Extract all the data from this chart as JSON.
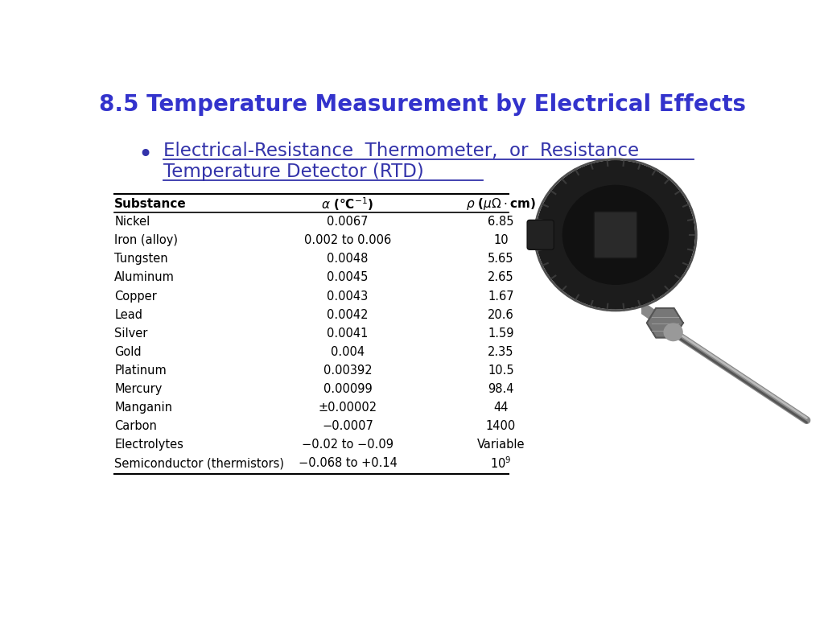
{
  "title": "8.5 Temperature Measurement by Electrical Effects",
  "title_color": "#3333CC",
  "bullet_text_line1": "Electrical-Resistance  Thermometer,  or  Resistance",
  "bullet_text_line2": "Temperature Detector (RTD)",
  "bullet_color": "#3333AA",
  "bg_color": "#FFFFFF",
  "table_rows": [
    [
      "Nickel",
      "0.0067",
      "6.85"
    ],
    [
      "Iron (alloy)",
      "0.002 to 0.006",
      "10"
    ],
    [
      "Tungsten",
      "0.0048",
      "5.65"
    ],
    [
      "Aluminum",
      "0.0045",
      "2.65"
    ],
    [
      "Copper",
      "0.0043",
      "1.67"
    ],
    [
      "Lead",
      "0.0042",
      "20.6"
    ],
    [
      "Silver",
      "0.0041",
      "1.59"
    ],
    [
      "Gold",
      "0.004",
      "2.35"
    ],
    [
      "Platinum",
      "0.00392",
      "10.5"
    ],
    [
      "Mercury",
      "0.00099",
      "98.4"
    ],
    [
      "Manganin",
      "±0.00002",
      "44"
    ],
    [
      "Carbon",
      "−0.0007",
      "1400"
    ],
    [
      "Electrolytes",
      "−0.02 to −0.09",
      "Variable"
    ],
    [
      "Semiconductor (thermistors)",
      "−0.068 to +0.14",
      "10^9"
    ]
  ],
  "text_color": "#000000",
  "header_color": "#000000",
  "line_color": "#000000"
}
